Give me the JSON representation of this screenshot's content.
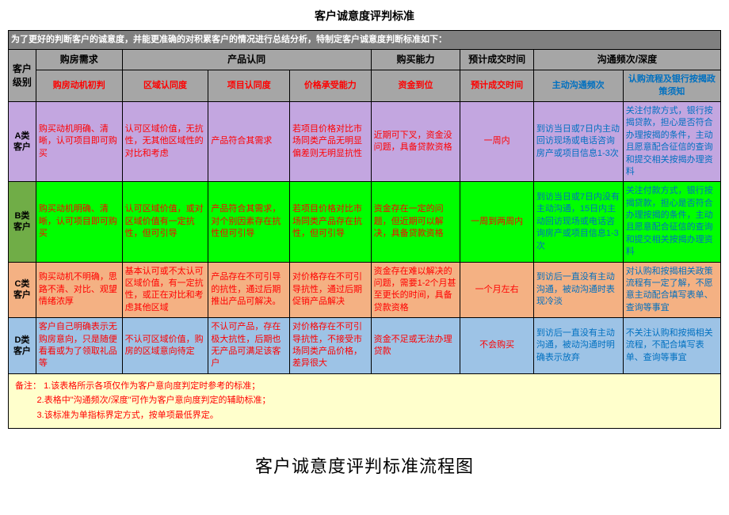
{
  "title": "客户诚意度评判标准",
  "intro": "为了更好的判断客户的诚意度，并能更准确的对积累客户的情况进行总结分析，特制定客户诚意度判断标准如下：",
  "header_top": {
    "c0": "客户级别",
    "c1": "购房需求",
    "c2": "产品认同",
    "c3": "购买能力",
    "c4": "预计成交时间",
    "c5": "沟通频次/深度"
  },
  "header_sub": {
    "s1": "购房动机初判",
    "s2": "区域认同度",
    "s3": "项目认同度",
    "s4": "价格承受能力",
    "s5": "资金到位",
    "s6": "预计成交时间",
    "s7": "主动沟通频次",
    "s8": "认购流程及银行按揭政策须知"
  },
  "rows": {
    "a": {
      "label": "A类客户",
      "c1": "购买动机明确、清晰，认可项目即可购买",
      "c2": "认可区域价值，无抗性，无其他区域性的对比和考虑",
      "c3": "产品符合其需求",
      "c4": "若项目价格对比市场同类产品无明显偏差则无明显抗性",
      "c5": "近期可下叉，资金没问题，具备贷款资格",
      "c6": "一周内",
      "c7": "到访当日或7日内主动回访现场或电话咨询房产或项目信息1-3次",
      "c8": "关注付款方式，银行按揭贷款，担心是否符合办理按揭的条件，主动且愿意配合征信的查询和提交相关按揭办理资料"
    },
    "b": {
      "label": "B类客户",
      "c1": "购买动机明确、清晰，认可项目即可购买",
      "c2": "认可区域价值，或对区域价值有一定抗性，但可引导",
      "c3": "产品符合其需求，对个别因素存在抗性但可引导",
      "c4": "若项目价格对比市场同类产品存在抗性，但可引导",
      "c5": "资金存在一定的问题，但近期可以解决，具备贷款资格",
      "c6": "一周到两周内",
      "c7": "到访当日或7日内没有主动沟通，15日内主动回访现场或电话咨询房产或项目信息1-3次",
      "c8": "关注付款方式，银行按揭贷款，担心是否符合办理按揭的条件，主动且愿意配合征信的查询和提交相关按揭办理资料"
    },
    "c": {
      "label": "C类客户",
      "c1": "购买动机不明确，思路不清、对比、观望情绪浓厚",
      "c2": "基本认可或不太认可区域价值，有一定抗性，或正在对比和考虑其他区域",
      "c3": "产品存在不可引导的抗性，通过后期推出产品可解决。",
      "c4": "对价格存在不可引导抗性，通过后期促销产品解决",
      "c5": "资金存在难以解决的问题，需要1-2个月甚至更长的时间，具备贷款资格",
      "c6": "一个月左右",
      "c7": "到访后一直没有主动沟通，被动沟通时表现冷淡",
      "c8": "对认购和按揭相关政策流程有一定了解，不愿意主动配合填写表单、查询等事宜"
    },
    "d": {
      "label": "D类客户",
      "c1": "客户自己明确表示无购房意向，只是随便看看或为了领取礼品等",
      "c2": "不认可区域价值，购房的区域意向待定",
      "c3": "不认可产品，存在极大抗性，后期也无产品可满足该客户",
      "c4": "对价格存在不可引导抗性，不接受市场同类产品价格，差异很大",
      "c5": "资金不足或无法办理贷款",
      "c6": "不会购买",
      "c7": "到访后一直没有主动沟通，被动沟通时明确表示放弃",
      "c8": "不关注认购和按揭相关流程，不配合填写表单、查询等事宜"
    }
  },
  "notes": {
    "label": "备注：",
    "n1": "1.该表格所示各项仅作为客户意向度判定时参考的标准；",
    "n2": "2.表格中\"沟通频次/深度\"可作为客户意向度判定的辅助标准；",
    "n3": "3.该标准为单指标界定方式，按单项最低界定。"
  },
  "flow_title": "客户诚意度评判标准流程图",
  "colors": {
    "header_bg": "#a6a6a6",
    "intro_bg": "#808080",
    "row_a": "#c3a6e0",
    "row_b": "#00ff00",
    "row_b_label": "#70ad47",
    "row_c": "#f4b183",
    "row_d": "#9dc3e6",
    "notes_bg": "#ffffcc",
    "red": "#ff0000",
    "blue": "#0070c0"
  }
}
